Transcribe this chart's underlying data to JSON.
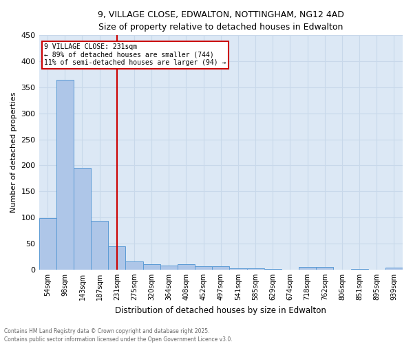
{
  "title_line1": "9, VILLAGE CLOSE, EDWALTON, NOTTINGHAM, NG12 4AD",
  "title_line2": "Size of property relative to detached houses in Edwalton",
  "xlabel": "Distribution of detached houses by size in Edwalton",
  "ylabel": "Number of detached properties",
  "annotation_line1": "9 VILLAGE CLOSE: 231sqm",
  "annotation_line2": "← 89% of detached houses are smaller (744)",
  "annotation_line3": "11% of semi-detached houses are larger (94) →",
  "bin_labels": [
    "54sqm",
    "98sqm",
    "143sqm",
    "187sqm",
    "231sqm",
    "275sqm",
    "320sqm",
    "364sqm",
    "408sqm",
    "452sqm",
    "497sqm",
    "541sqm",
    "585sqm",
    "629sqm",
    "674sqm",
    "718sqm",
    "762sqm",
    "806sqm",
    "851sqm",
    "895sqm",
    "939sqm"
  ],
  "bar_values": [
    99,
    364,
    195,
    94,
    45,
    15,
    10,
    8,
    10,
    6,
    6,
    3,
    2,
    1,
    0,
    5,
    5,
    0,
    1,
    0,
    4
  ],
  "bar_color": "#aec6e8",
  "bar_edge_color": "#5b9bd5",
  "vline_x_index": 4,
  "vline_color": "#cc0000",
  "annotation_box_color": "#cc0000",
  "grid_color": "#c8d8ea",
  "background_color": "#dce8f5",
  "footer_line1": "Contains HM Land Registry data © Crown copyright and database right 2025.",
  "footer_line2": "Contains public sector information licensed under the Open Government Licence v3.0.",
  "ylim": [
    0,
    450
  ],
  "yticks": [
    0,
    50,
    100,
    150,
    200,
    250,
    300,
    350,
    400,
    450
  ],
  "figsize": [
    6.0,
    5.0
  ],
  "dpi": 100
}
